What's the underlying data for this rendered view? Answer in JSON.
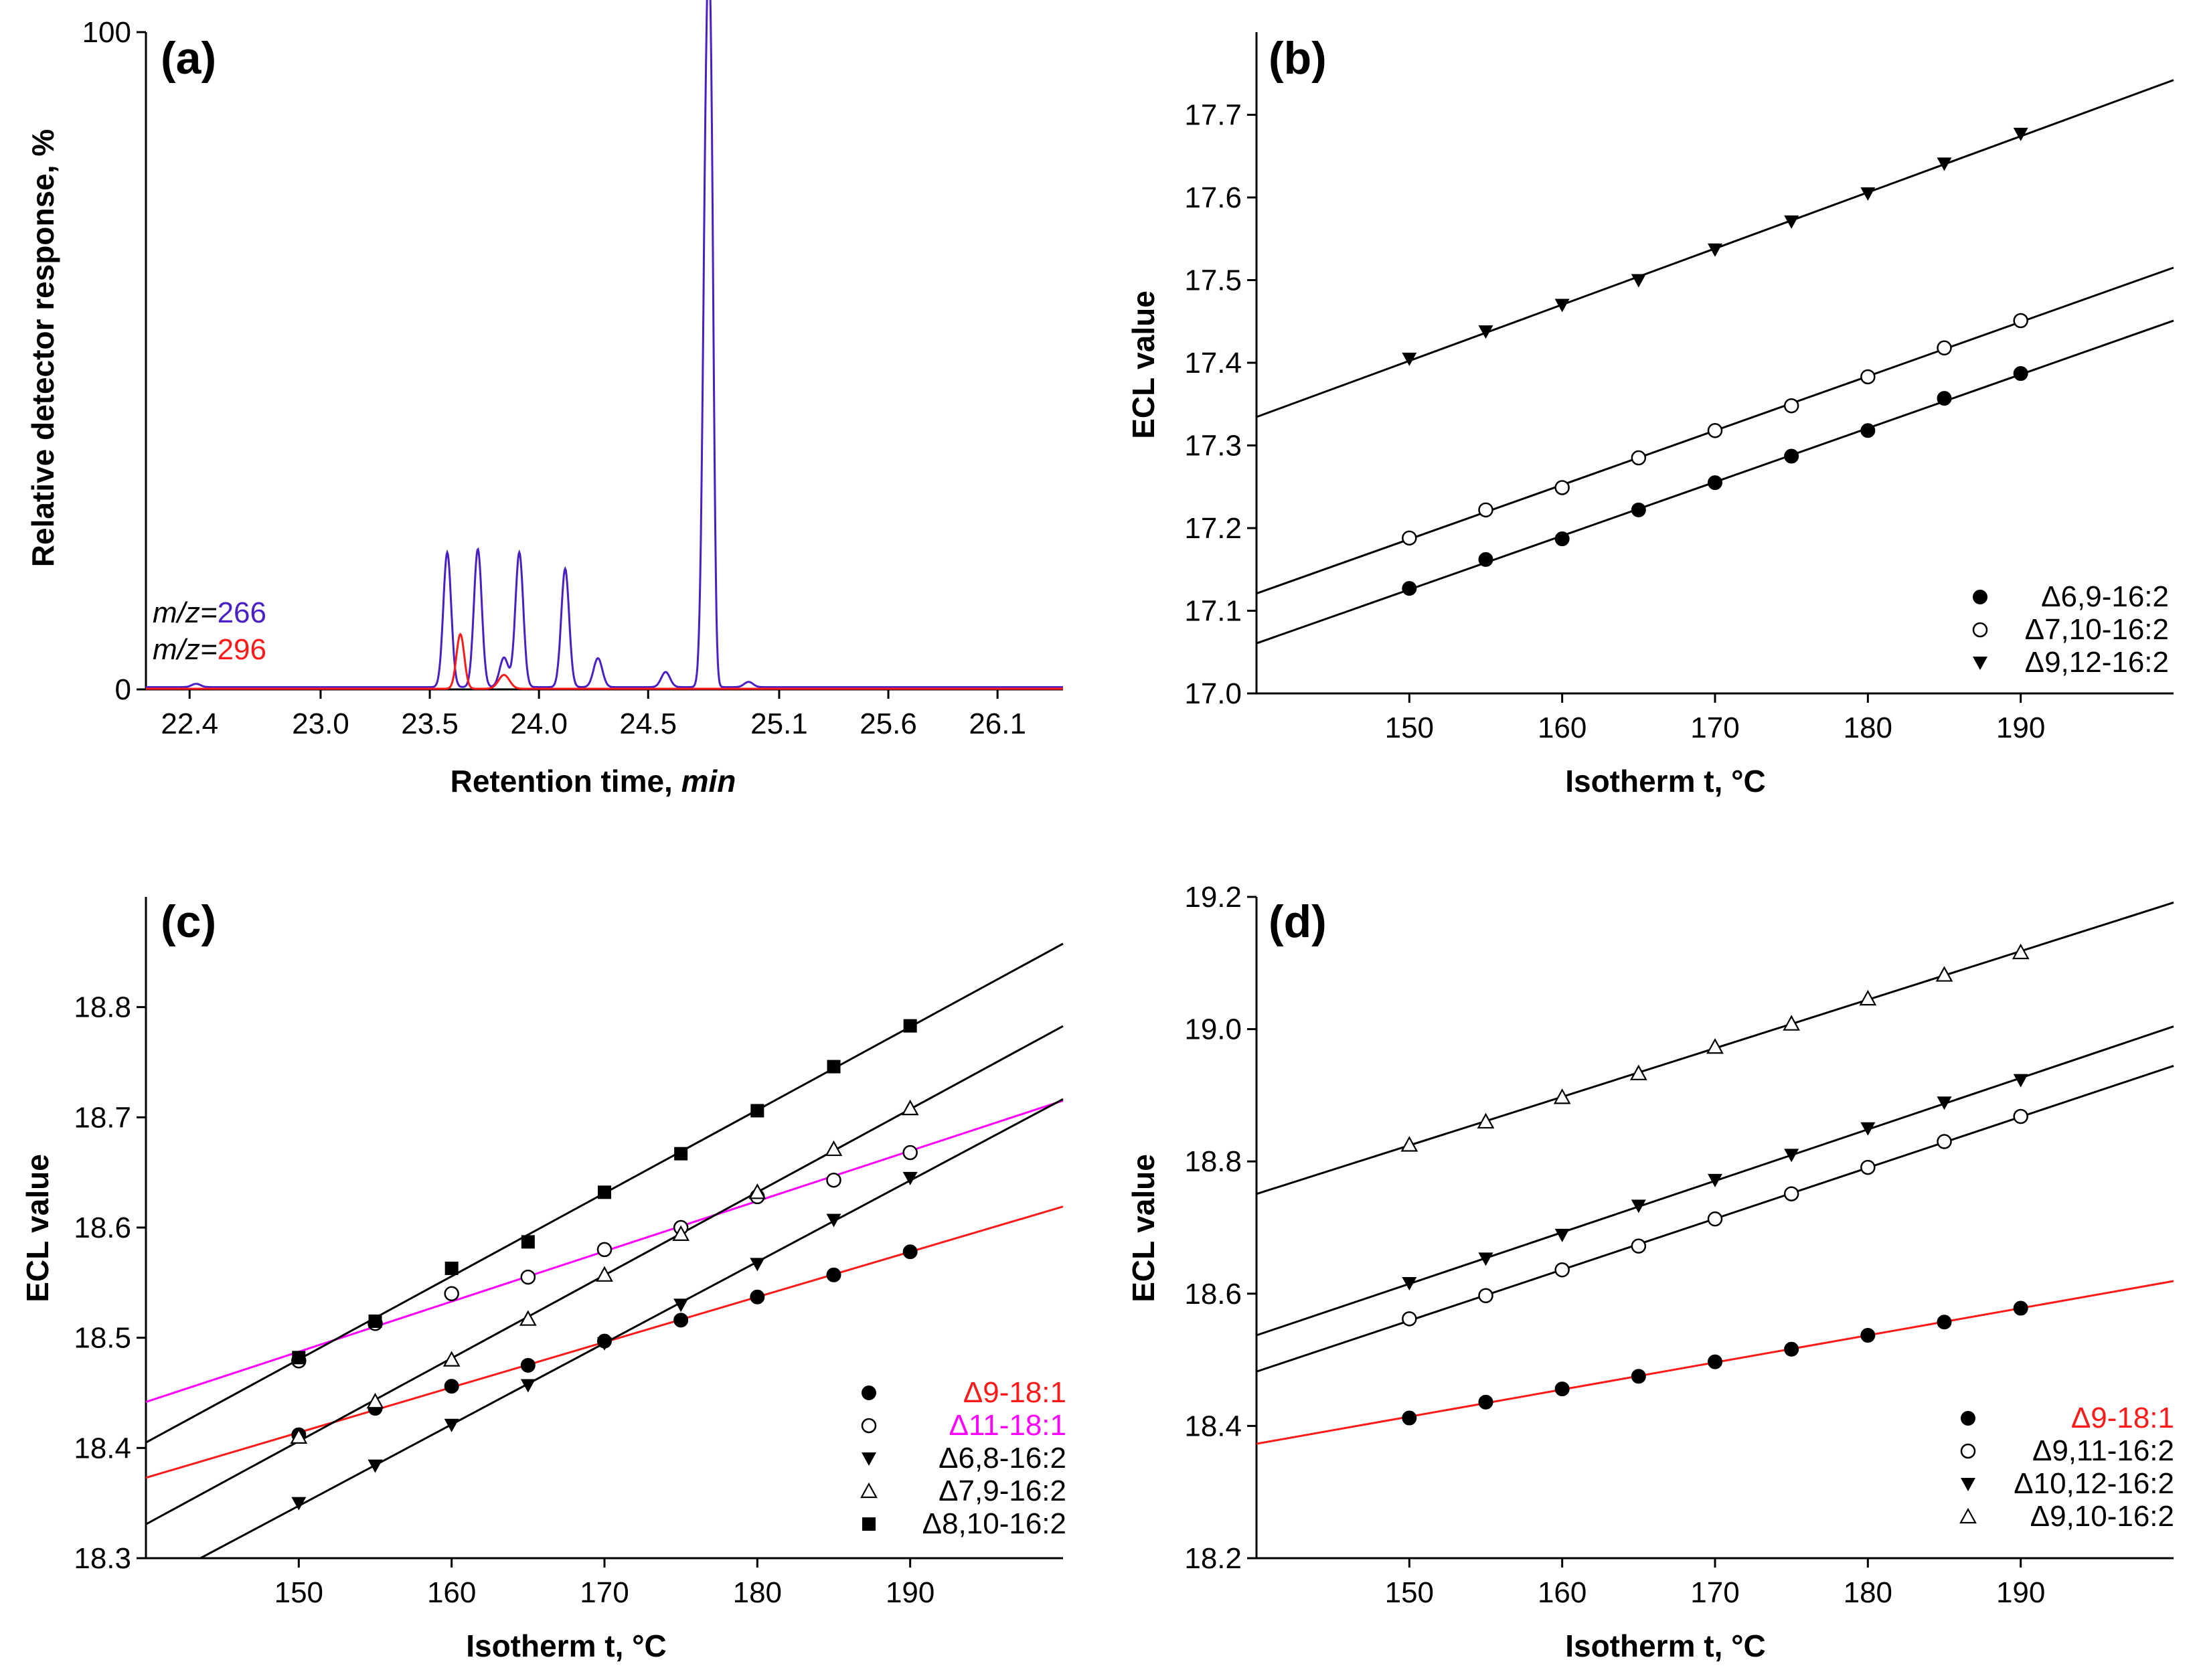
{
  "chart_data": [
    {
      "panel": "(a)",
      "type": "line",
      "xlabel_prefix": "Retention time, ",
      "xlabel_unit": "min",
      "ylabel": "Relative detector response, %",
      "xlim": [
        22.2,
        26.4
      ],
      "ylim": [
        0,
        100
      ],
      "x_ticks": [
        "22.4",
        "23.0",
        "23.5",
        "24.0",
        "24.5",
        "25.1",
        "25.6",
        "26.1"
      ],
      "y_ticks": [
        "0",
        "100"
      ],
      "series": [
        {
          "name": "m/z=266",
          "label_prefix": "m/z=",
          "label_value": "266",
          "color": "#4a1fc4",
          "baseline": 0.35,
          "peaks": [
            {
              "x": 22.43,
              "h": 0.5,
              "w": 0.02
            },
            {
              "x": 23.58,
              "h": 20.5,
              "w": 0.018
            },
            {
              "x": 23.72,
              "h": 21.0,
              "w": 0.018
            },
            {
              "x": 23.84,
              "h": 4.5,
              "w": 0.02
            },
            {
              "x": 23.91,
              "h": 20.5,
              "w": 0.018
            },
            {
              "x": 24.12,
              "h": 18.0,
              "w": 0.018
            },
            {
              "x": 24.27,
              "h": 4.4,
              "w": 0.02
            },
            {
              "x": 24.58,
              "h": 2.3,
              "w": 0.02
            },
            {
              "x": 24.77,
              "h": 94.0,
              "w": 0.017
            },
            {
              "x": 24.79,
              "h": 45.0,
              "w": 0.012
            },
            {
              "x": 24.96,
              "h": 0.8,
              "w": 0.02
            }
          ]
        },
        {
          "name": "m/z=296",
          "label_prefix": "m/z=",
          "label_value": "296",
          "color": "#ff1a1a",
          "baseline": 0.1,
          "peaks": [
            {
              "x": 23.64,
              "h": 8.3,
              "w": 0.018
            },
            {
              "x": 23.84,
              "h": 2.1,
              "w": 0.025
            }
          ]
        }
      ]
    },
    {
      "panel": "(b)",
      "type": "scatter",
      "xlabel": "Isotherm t, °C",
      "ylabel": "ECL value",
      "xlim": [
        140,
        200
      ],
      "ylim": [
        17.0,
        17.8
      ],
      "x_ticks": [
        150,
        160,
        170,
        180,
        190
      ],
      "y_ticks": [
        "17.0",
        "17.1",
        "17.2",
        "17.3",
        "17.4",
        "17.5",
        "17.6",
        "17.7"
      ],
      "x": [
        150,
        155,
        160,
        165,
        170,
        175,
        180,
        185,
        190
      ],
      "series": [
        {
          "name": "Δ6,9-16:2",
          "marker": "circle-filled",
          "color": "#000000",
          "label_color": "#000000",
          "line_color": "#000000",
          "values": [
            17.127,
            17.162,
            17.187,
            17.222,
            17.255,
            17.287,
            17.318,
            17.357,
            17.387
          ]
        },
        {
          "name": "Δ7,10-16:2",
          "marker": "circle-open",
          "color": "#000000",
          "label_color": "#000000",
          "line_color": "#000000",
          "values": [
            17.188,
            17.222,
            17.249,
            17.285,
            17.318,
            17.348,
            17.383,
            17.418,
            17.451
          ]
        },
        {
          "name": "Δ9,12-16:2",
          "marker": "triangle-down-filled",
          "color": "#000000",
          "label_color": "#000000",
          "line_color": "#000000",
          "values": [
            17.405,
            17.438,
            17.47,
            17.5,
            17.537,
            17.571,
            17.605,
            17.641,
            17.677
          ]
        }
      ]
    },
    {
      "panel": "(c)",
      "type": "scatter",
      "xlabel": "Isotherm t, °C",
      "ylabel": "ECL value",
      "xlim": [
        140,
        200
      ],
      "ylim": [
        18.3,
        18.9
      ],
      "x_ticks": [
        150,
        160,
        170,
        180,
        190
      ],
      "y_ticks": [
        "18.3",
        "18.4",
        "18.5",
        "18.6",
        "18.7",
        "18.8"
      ],
      "x": [
        150,
        155,
        160,
        165,
        170,
        175,
        180,
        185,
        190
      ],
      "series": [
        {
          "name": "Δ9-18:1",
          "marker": "circle-filled",
          "color": "#000000",
          "label_color": "#ff1a1a",
          "line_color": "#ff1a1a",
          "values": [
            18.412,
            18.436,
            18.456,
            18.475,
            18.497,
            18.516,
            18.537,
            18.557,
            18.578
          ]
        },
        {
          "name": "Δ11-18:1",
          "marker": "circle-open",
          "color": "#000000",
          "label_color": "#ff00ff",
          "line_color": "#ff00ff",
          "values": [
            18.479,
            18.513,
            18.54,
            18.555,
            18.58,
            18.6,
            18.628,
            18.643,
            18.668
          ]
        },
        {
          "name": "Δ6,8-16:2",
          "marker": "triangle-down-filled",
          "color": "#000000",
          "label_color": "#000000",
          "line_color": "#000000",
          "values": [
            18.35,
            18.384,
            18.421,
            18.457,
            18.495,
            18.53,
            18.567,
            18.607,
            18.645
          ]
        },
        {
          "name": "Δ7,9-16:2",
          "marker": "triangle-up-open",
          "color": "#000000",
          "label_color": "#000000",
          "line_color": "#000000",
          "values": [
            18.41,
            18.442,
            18.48,
            18.517,
            18.557,
            18.594,
            18.632,
            18.671,
            18.708
          ]
        },
        {
          "name": "Δ8,10-16:2",
          "marker": "square-filled",
          "color": "#000000",
          "label_color": "#000000",
          "line_color": "#000000",
          "values": [
            18.482,
            18.515,
            18.563,
            18.587,
            18.632,
            18.667,
            18.706,
            18.746,
            18.783
          ]
        }
      ]
    },
    {
      "panel": "(d)",
      "type": "scatter",
      "xlabel": "Isotherm t, °C",
      "ylabel": "ECL value",
      "xlim": [
        140,
        200
      ],
      "ylim": [
        18.2,
        19.2
      ],
      "x_ticks": [
        150,
        160,
        170,
        180,
        190
      ],
      "y_ticks": [
        "18.2",
        "18.4",
        "18.6",
        "18.8",
        "19.0",
        "19.2"
      ],
      "x": [
        150,
        155,
        160,
        165,
        170,
        175,
        180,
        185,
        190
      ],
      "series": [
        {
          "name": "Δ9-18:1",
          "marker": "circle-filled",
          "color": "#000000",
          "label_color": "#ff1a1a",
          "line_color": "#ff1a1a",
          "values": [
            18.412,
            18.436,
            18.456,
            18.475,
            18.497,
            18.516,
            18.537,
            18.557,
            18.578
          ]
        },
        {
          "name": "Δ9,11-16:2",
          "marker": "circle-open",
          "color": "#000000",
          "label_color": "#000000",
          "line_color": "#000000",
          "values": [
            18.562,
            18.597,
            18.636,
            18.672,
            18.713,
            18.751,
            18.791,
            18.83,
            18.868
          ]
        },
        {
          "name": "Δ10,12-16:2",
          "marker": "triangle-down-filled",
          "color": "#000000",
          "label_color": "#000000",
          "line_color": "#000000",
          "values": [
            18.616,
            18.653,
            18.689,
            18.733,
            18.772,
            18.81,
            18.85,
            18.889,
            18.923
          ]
        },
        {
          "name": "Δ9,10-16:2",
          "marker": "triangle-up-open",
          "color": "#000000",
          "label_color": "#000000",
          "line_color": "#000000",
          "values": [
            18.825,
            18.86,
            18.897,
            18.933,
            18.973,
            19.008,
            19.046,
            19.082,
            19.116
          ]
        }
      ]
    }
  ]
}
